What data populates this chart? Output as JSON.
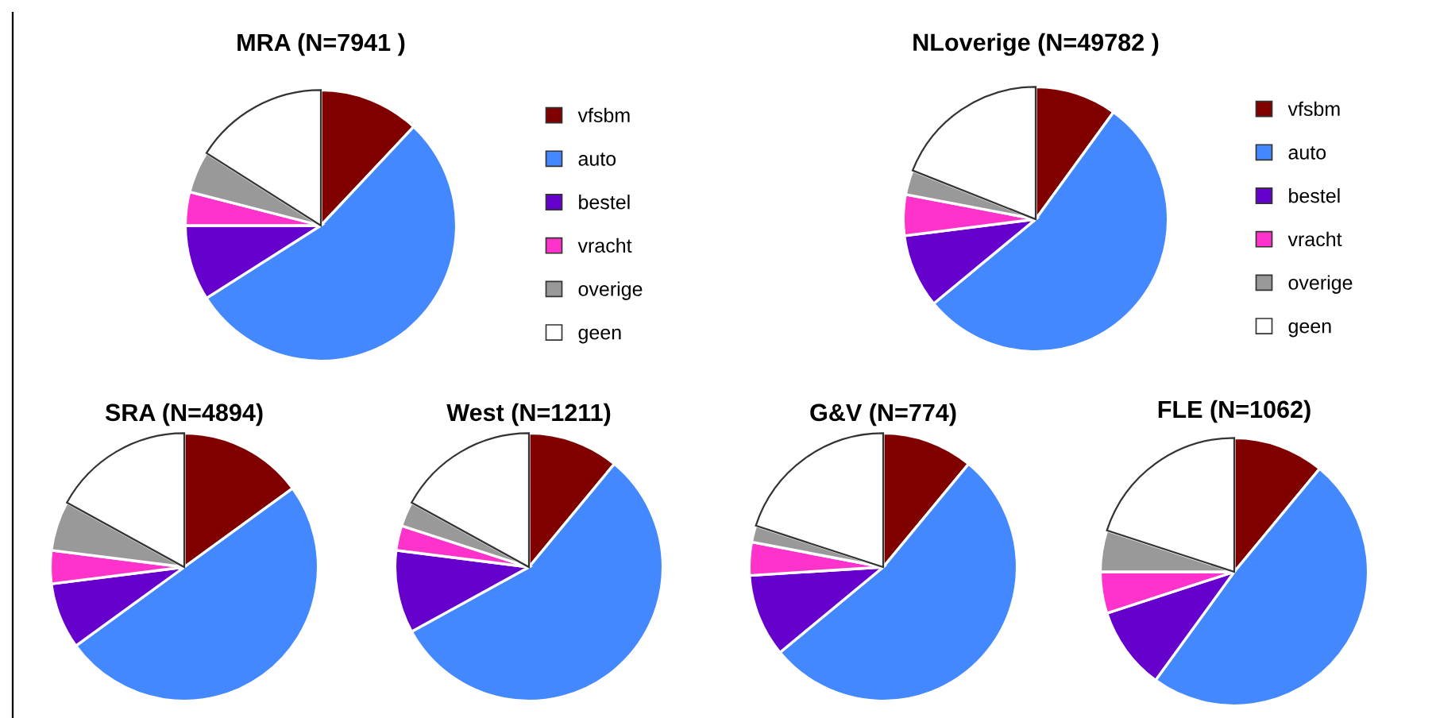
{
  "chart_data": [
    {
      "type": "pie",
      "title": "MRA (N=7941 )",
      "categories": [
        "vfsbm",
        "auto",
        "bestel",
        "vracht",
        "overige",
        "geen"
      ],
      "values": [
        12,
        54,
        9,
        4,
        5,
        16
      ],
      "colors": [
        "#800000",
        "#4488ff",
        "#6600cc",
        "#ff33cc",
        "#999999",
        "#ffffff"
      ],
      "legend": "right"
    },
    {
      "type": "pie",
      "title": "NLoverige (N=49782 )",
      "categories": [
        "vfsbm",
        "auto",
        "bestel",
        "vracht",
        "overige",
        "geen"
      ],
      "values": [
        10,
        54,
        9,
        5,
        3,
        19
      ],
      "colors": [
        "#800000",
        "#4488ff",
        "#6600cc",
        "#ff33cc",
        "#999999",
        "#ffffff"
      ],
      "legend": "right"
    },
    {
      "type": "pie",
      "title": "SRA (N=4894)",
      "categories": [
        null,
        null,
        null,
        null,
        null,
        null
      ],
      "values": [
        15,
        50,
        8,
        4,
        6,
        17
      ],
      "colors": [
        "#800000",
        "#4488ff",
        "#6600cc",
        "#ff33cc",
        "#999999",
        "#ffffff"
      ]
    },
    {
      "type": "pie",
      "title": "West (N=1211)",
      "categories": [
        null,
        null,
        null,
        null,
        null,
        null
      ],
      "values": [
        11,
        56,
        10,
        3,
        3,
        17
      ],
      "colors": [
        "#800000",
        "#4488ff",
        "#6600cc",
        "#ff33cc",
        "#999999",
        "#ffffff"
      ]
    },
    {
      "type": "pie",
      "title": "G&V (N=774)",
      "categories": [
        null,
        null,
        null,
        null,
        null,
        null
      ],
      "values": [
        11,
        53,
        10,
        4,
        2,
        20
      ],
      "colors": [
        "#800000",
        "#4488ff",
        "#6600cc",
        "#ff33cc",
        "#999999",
        "#ffffff"
      ]
    },
    {
      "type": "pie",
      "title": "FLE (N=1062)",
      "categories": [
        null,
        null,
        null,
        null,
        null,
        null
      ],
      "values": [
        11,
        49,
        10,
        5,
        5,
        20
      ],
      "colors": [
        "#800000",
        "#4488ff",
        "#6600cc",
        "#ff33cc",
        "#999999",
        "#ffffff"
      ]
    }
  ]
}
